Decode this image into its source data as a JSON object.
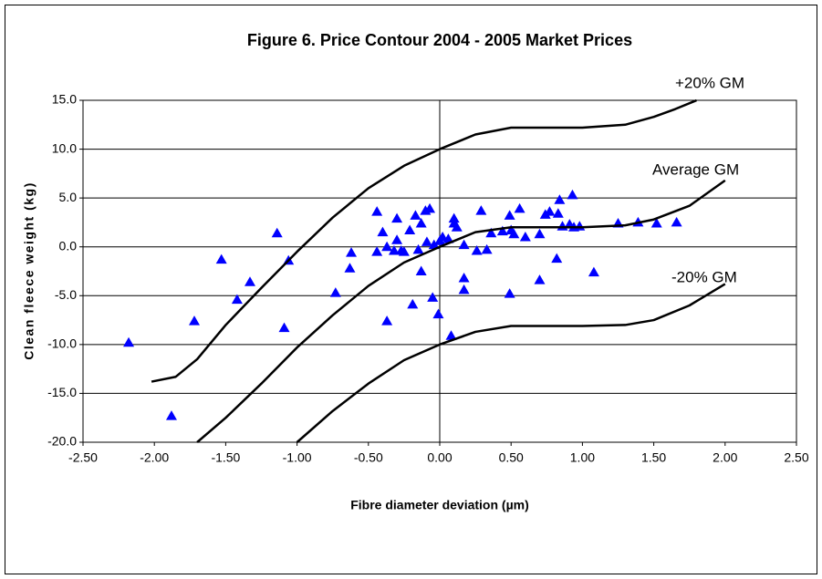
{
  "chart_data": {
    "type": "scatter",
    "title": "Figure 6. Price Contour 2004 - 2005 Market Prices",
    "x_label": "Fibre diameter deviation (µm)",
    "y_label": "Clean fleece weight (kg)",
    "xlim": [
      -2.5,
      2.5
    ],
    "ylim": [
      -20,
      15
    ],
    "xticks": [
      {
        "value": -2.5,
        "label": "-2.50"
      },
      {
        "value": -2,
        "label": "-2.00"
      },
      {
        "value": -1.5,
        "label": "-1.50"
      },
      {
        "value": -1,
        "label": "-1.00"
      },
      {
        "value": -0.5,
        "label": "-0.50"
      },
      {
        "value": 0,
        "label": "0.00"
      },
      {
        "value": 0.5,
        "label": "0.50"
      },
      {
        "value": 1,
        "label": "1.00"
      },
      {
        "value": 1.5,
        "label": "1.50"
      },
      {
        "value": 2,
        "label": "2.00"
      },
      {
        "value": 2.5,
        "label": "2.50"
      }
    ],
    "yticks": [
      {
        "value": 15,
        "label": "15.0"
      },
      {
        "value": 10,
        "label": "10.0"
      },
      {
        "value": 5,
        "label": "5.0"
      },
      {
        "value": 0,
        "label": "0.0"
      },
      {
        "value": -5,
        "label": "-5.0"
      },
      {
        "value": -10,
        "label": "-10.0"
      },
      {
        "value": -15,
        "label": "-15.0"
      },
      {
        "value": -20,
        "label": "-20.0"
      }
    ],
    "grid": true,
    "series": [
      {
        "type": "scatter",
        "color": "#0000ff",
        "x": [
          -2.18,
          -1.88,
          -1.72,
          -1.53,
          -1.42,
          -1.33,
          -1.14,
          -1.09,
          -1.06,
          -0.73,
          -0.63,
          -0.62,
          -0.44,
          -0.44,
          -0.4,
          -0.37,
          -0.37,
          -0.32,
          -0.3,
          -0.3,
          -0.27,
          -0.25,
          -0.21,
          -0.19,
          -0.17,
          -0.15,
          -0.13,
          -0.13,
          -0.1,
          -0.09,
          -0.07,
          -0.05,
          -0.04,
          -0.01,
          0.0,
          0.02,
          0.06,
          0.08,
          0.1,
          0.1,
          0.12,
          0.17,
          0.17,
          0.17,
          0.26,
          0.29,
          0.33,
          0.36,
          0.44,
          0.49,
          0.49,
          0.5,
          0.52,
          0.56,
          0.6,
          0.7,
          0.7,
          0.74,
          0.77,
          0.82,
          0.83,
          0.84,
          0.86,
          0.91,
          0.93,
          0.94,
          0.98,
          1.08,
          1.25,
          1.39,
          1.52,
          1.66
        ],
        "values": [
          -9.8,
          -17.3,
          -7.6,
          -1.3,
          -5.4,
          -3.6,
          1.4,
          -8.3,
          -1.4,
          -4.7,
          -2.2,
          -0.6,
          3.6,
          -0.5,
          1.5,
          0,
          -7.6,
          -0.4,
          2.9,
          0.7,
          -0.4,
          -0.5,
          1.7,
          -5.9,
          3.2,
          -0.3,
          2.4,
          -2.5,
          3.7,
          0.5,
          3.9,
          -5.2,
          0.2,
          -6.9,
          0.6,
          1.0,
          0.8,
          -9.1,
          2.9,
          2.4,
          2.0,
          -3.2,
          -4.4,
          0.2,
          -0.4,
          3.7,
          -0.3,
          1.4,
          1.6,
          -4.8,
          3.2,
          1.7,
          1.3,
          3.9,
          1.0,
          1.3,
          -3.4,
          3.3,
          3.6,
          -1.2,
          3.4,
          4.8,
          2.1,
          2.3,
          5.3,
          2.0,
          2.1,
          -2.6,
          2.4,
          2.5,
          2.4,
          2.5
        ]
      },
      {
        "type": "line",
        "name": "+20% GM",
        "color": "#000000",
        "x": [
          -2.02,
          -1.85,
          -1.7,
          -1.5,
          -1.25,
          -1.0,
          -0.75,
          -0.5,
          -0.25,
          0,
          0.25,
          0.5,
          1.0,
          1.3,
          1.5,
          1.65,
          1.8
        ],
        "values": [
          -13.8,
          -13.3,
          -11.5,
          -8,
          -4.2,
          -0.5,
          3,
          6,
          8.3,
          10,
          11.5,
          12.2,
          12.2,
          12.5,
          13.3,
          14.1,
          15
        ]
      },
      {
        "type": "line",
        "name": "Average GM",
        "color": "#000000",
        "x": [
          -1.7,
          -1.5,
          -1.25,
          -1.0,
          -0.75,
          -0.5,
          -0.25,
          0,
          0.25,
          0.5,
          1.0,
          1.3,
          1.5,
          1.75,
          2.0
        ],
        "values": [
          -20,
          -17.5,
          -14,
          -10.3,
          -7,
          -4,
          -1.6,
          0,
          1.5,
          2,
          2,
          2.2,
          2.8,
          4.2,
          6.8
        ]
      },
      {
        "type": "line",
        "name": "-20% GM",
        "color": "#000000",
        "x": [
          -1.0,
          -0.75,
          -0.5,
          -0.25,
          0,
          0.25,
          0.5,
          1.0,
          1.3,
          1.5,
          1.75,
          2.0
        ],
        "values": [
          -20,
          -16.8,
          -14,
          -11.6,
          -10,
          -8.7,
          -8.1,
          -8.1,
          -8,
          -7.5,
          -6,
          -3.8
        ]
      }
    ]
  }
}
